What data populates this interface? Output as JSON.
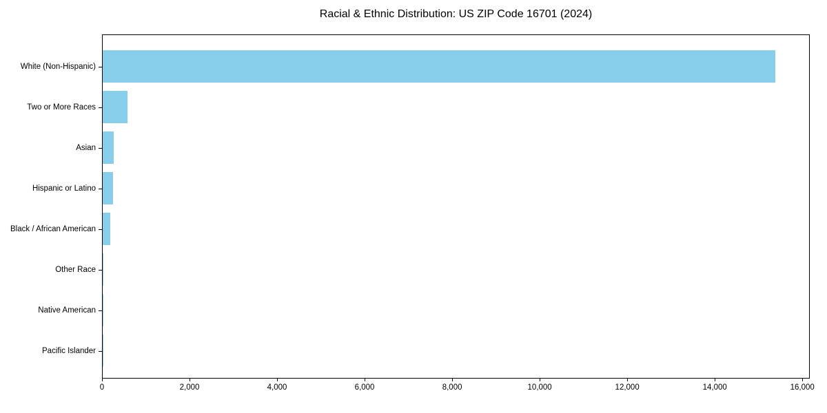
{
  "title": "Racial & Ethnic Distribution: US ZIP Code 16701 (2024)",
  "chart_data": {
    "type": "bar",
    "orientation": "horizontal",
    "title": "Racial & Ethnic Distribution: US ZIP Code 16701 (2024)",
    "xlabel": "",
    "ylabel": "",
    "categories": [
      "White (Non-Hispanic)",
      "Two or More Races",
      "Asian",
      "Hispanic or Latino",
      "Black / African American",
      "Other Race",
      "Native American",
      "Pacific Islander"
    ],
    "values": [
      15400,
      565,
      250,
      240,
      180,
      20,
      8,
      3
    ],
    "xlim": [
      0,
      16170
    ],
    "xticks": [
      0,
      2000,
      4000,
      6000,
      8000,
      10000,
      12000,
      14000,
      16000
    ],
    "xtick_labels": [
      "0",
      "2,000",
      "4,000",
      "6,000",
      "8,000",
      "10,000",
      "12,000",
      "14,000",
      "16,000"
    ],
    "bar_color": "#87CEEB",
    "spine_color": "#000000",
    "text_color": "#000000",
    "grid": false,
    "legend": null
  }
}
